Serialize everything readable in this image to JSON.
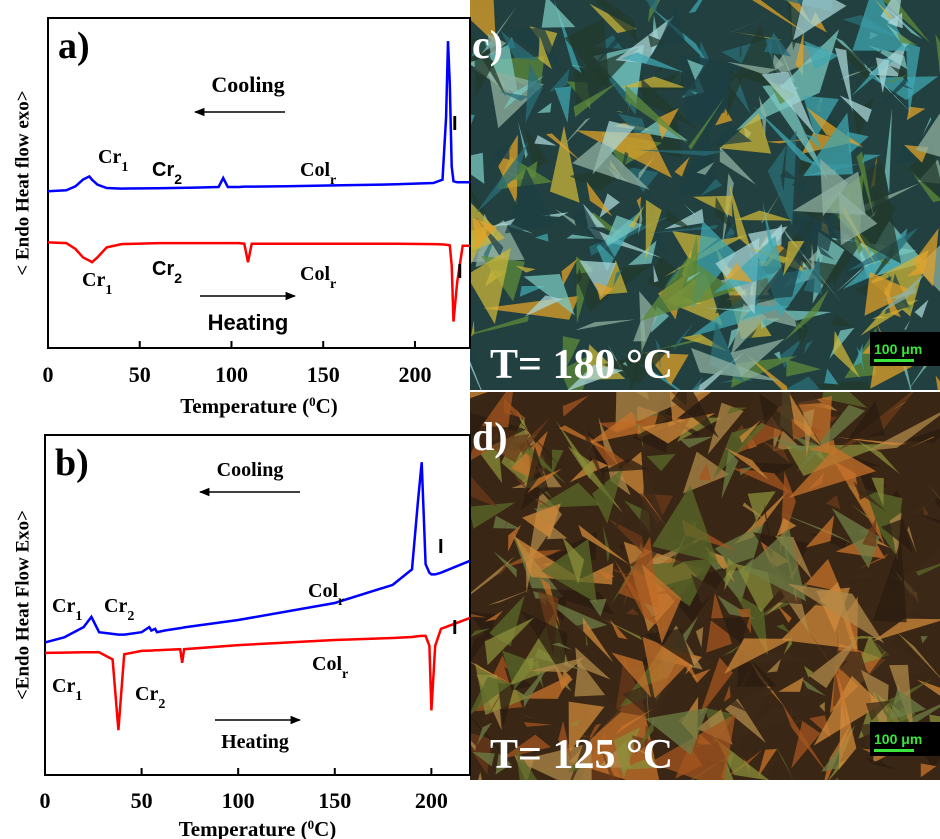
{
  "chart_data": [
    {
      "type": "line",
      "panel_label": "a)",
      "y_label": "< Endo Heat flow exo>",
      "x_label": [
        "Temperature (",
        "0",
        "C)"
      ],
      "xlim": [
        0,
        230
      ],
      "ylim": [
        0,
        100
      ],
      "xticks": [
        0,
        50,
        100,
        150,
        200
      ],
      "x": [
        0,
        10,
        15,
        19,
        22.5,
        24,
        27,
        32,
        40,
        60,
        80,
        93,
        95.5,
        98,
        104,
        107,
        109,
        111,
        130,
        160,
        190,
        210,
        215,
        217,
        218,
        219,
        220,
        221,
        223,
        226,
        230
      ],
      "series": [
        {
          "name": "Cooling",
          "color": "#0000ff",
          "values": [
            47.5,
            47.8,
            49,
            51,
            52,
            51,
            49.5,
            48.5,
            48.3,
            48.4,
            48.6,
            48.8,
            51.5,
            48.8,
            48.8,
            48.9,
            48.9,
            48.9,
            49,
            49.3,
            49.6,
            50,
            51,
            70,
            93,
            80,
            55,
            50.5,
            50.2,
            50.2,
            50.2
          ]
        },
        {
          "name": "Heating",
          "color": "#ff0000",
          "values": [
            32,
            31.8,
            30,
            27.5,
            26.5,
            26,
            27.5,
            30.5,
            31.5,
            31.8,
            31.8,
            31.8,
            31.8,
            31.8,
            31.8,
            31.6,
            26,
            31.6,
            31.6,
            31.6,
            31.6,
            31.5,
            31.4,
            31.3,
            31.2,
            31.1,
            25,
            8,
            20,
            31,
            31
          ]
        }
      ],
      "annotations": [
        {
          "text": "Cr",
          "sub": "1"
        },
        {
          "text": "Cr",
          "sub": "2"
        },
        {
          "text": "Col",
          "sub": "r"
        },
        {
          "text": "I"
        },
        {
          "text": "Cr",
          "sub": "1"
        },
        {
          "text": "Cr",
          "sub": "2"
        },
        {
          "text": "Col",
          "sub": "r"
        },
        {
          "text": "I"
        }
      ]
    },
    {
      "type": "line",
      "panel_label": "b)",
      "y_label": "<Endo Heat Flow Exo>",
      "x_label": [
        "Temperature (",
        "0",
        "C)"
      ],
      "xlim": [
        0,
        220
      ],
      "ylim": [
        0,
        100
      ],
      "xticks": [
        0,
        50,
        100,
        150,
        200
      ],
      "x": [
        0,
        10,
        20,
        24,
        28,
        35,
        38,
        41,
        50,
        54,
        55,
        57,
        58,
        62,
        70,
        71,
        72,
        100,
        150,
        180,
        190,
        193,
        195,
        197,
        199,
        200,
        202,
        205,
        220
      ],
      "series": [
        {
          "name": "Cooling",
          "color": "#0000ff",
          "values": [
            39,
            40.5,
            43.5,
            46.5,
            42,
            41.5,
            41.3,
            41.3,
            42,
            43.5,
            42.5,
            43,
            42,
            42.5,
            43.2,
            43.3,
            43.4,
            45.6,
            50.6,
            55.9,
            60.5,
            80,
            92,
            62,
            59.5,
            59,
            59,
            59.5,
            63
          ]
        },
        {
          "name": "Heating",
          "color": "#ff0000",
          "values": [
            35.9,
            36,
            36.1,
            36.1,
            36.1,
            34,
            13.2,
            35.5,
            36.5,
            36.6,
            36.6,
            36.7,
            36.7,
            36.8,
            37,
            33,
            37,
            38.2,
            39.7,
            40.3,
            40.6,
            40.8,
            40.9,
            40.9,
            38,
            19,
            38,
            43,
            46.2
          ]
        }
      ],
      "annotations": [
        {
          "text": "Cr",
          "sub": "1"
        },
        {
          "text": "Cr",
          "sub": "2"
        },
        {
          "text": "Col",
          "sub": "r"
        },
        {
          "text": "I"
        },
        {
          "text": "Cr",
          "sub": "1"
        },
        {
          "text": "Cr",
          "sub": "2"
        },
        {
          "text": "Col",
          "sub": "r"
        },
        {
          "text": "I"
        }
      ]
    }
  ],
  "micrographs": [
    {
      "label": "c)",
      "temperature": "T= 180 °C",
      "scale_bar": "100 μm"
    },
    {
      "label": "d)",
      "temperature": "T= 125 °C",
      "scale_bar": "100 μm"
    }
  ]
}
